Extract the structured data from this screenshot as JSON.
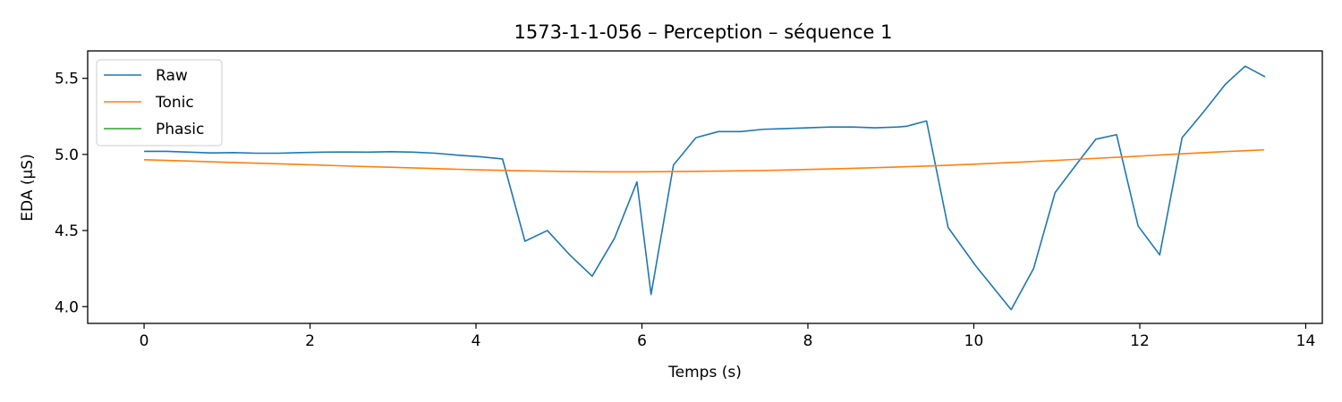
{
  "chart_data": {
    "type": "line",
    "title": "1573-1-1-056 – Perception – séquence 1",
    "xlabel": "Temps (s)",
    "ylabel": "EDA (µS)",
    "xlim": [
      -0.68,
      14.2
    ],
    "ylim": [
      3.89,
      5.68
    ],
    "xticks": [
      0,
      2,
      4,
      6,
      8,
      10,
      12,
      14
    ],
    "yticks": [
      4.0,
      4.5,
      5.0,
      5.5
    ],
    "xtick_labels": [
      "0",
      "2",
      "4",
      "6",
      "8",
      "10",
      "12",
      "14"
    ],
    "ytick_labels": [
      "4.0",
      "4.5",
      "5.0",
      "5.5"
    ],
    "grid": false,
    "legend_position": "top-left",
    "series": [
      {
        "name": "Raw",
        "color": "#1f77b4",
        "x": [
          0,
          0.27,
          0.54,
          0.81,
          1.08,
          1.35,
          1.62,
          1.89,
          2.16,
          2.43,
          2.7,
          2.97,
          3.24,
          3.51,
          3.78,
          4.05,
          4.32,
          4.59,
          4.86,
          5.13,
          5.4,
          5.67,
          5.94,
          6.11,
          6.38,
          6.65,
          6.92,
          7.19,
          7.46,
          7.73,
          8.0,
          8.27,
          8.54,
          8.81,
          9.08,
          9.19,
          9.43,
          9.69,
          10.02,
          10.45,
          10.72,
          10.98,
          11.23,
          11.47,
          11.72,
          11.98,
          12.24,
          12.51,
          12.77,
          13.03,
          13.27,
          13.51
        ],
        "y": [
          5.02,
          5.02,
          5.015,
          5.01,
          5.012,
          5.008,
          5.008,
          5.012,
          5.015,
          5.016,
          5.015,
          5.018,
          5.015,
          5.008,
          4.995,
          4.985,
          4.97,
          4.43,
          4.5,
          4.34,
          4.2,
          4.45,
          4.82,
          4.08,
          4.93,
          5.11,
          5.15,
          5.15,
          5.165,
          5.17,
          5.175,
          5.18,
          5.18,
          5.175,
          5.18,
          5.185,
          5.22,
          4.52,
          4.27,
          3.98,
          4.25,
          4.75,
          4.93,
          5.1,
          5.13,
          4.53,
          4.34,
          5.11,
          5.28,
          5.46,
          5.58,
          5.51
        ]
      },
      {
        "name": "Tonic",
        "color": "#ff7f0e",
        "x": [
          0,
          0.5,
          1,
          1.5,
          2,
          2.5,
          3,
          3.5,
          4,
          4.5,
          5,
          5.5,
          6,
          6.5,
          7,
          7.5,
          8,
          8.5,
          9,
          9.5,
          10,
          10.5,
          11,
          11.5,
          12,
          12.5,
          13,
          13.5
        ],
        "y": [
          4.965,
          4.957,
          4.948,
          4.94,
          4.932,
          4.923,
          4.915,
          4.907,
          4.899,
          4.893,
          4.889,
          4.886,
          4.886,
          4.888,
          4.891,
          4.895,
          4.901,
          4.908,
          4.916,
          4.925,
          4.936,
          4.948,
          4.961,
          4.975,
          4.989,
          5.004,
          5.018,
          5.03
        ]
      },
      {
        "name": "Phasic",
        "color": "#2ca02c",
        "x": [],
        "y": []
      }
    ]
  }
}
